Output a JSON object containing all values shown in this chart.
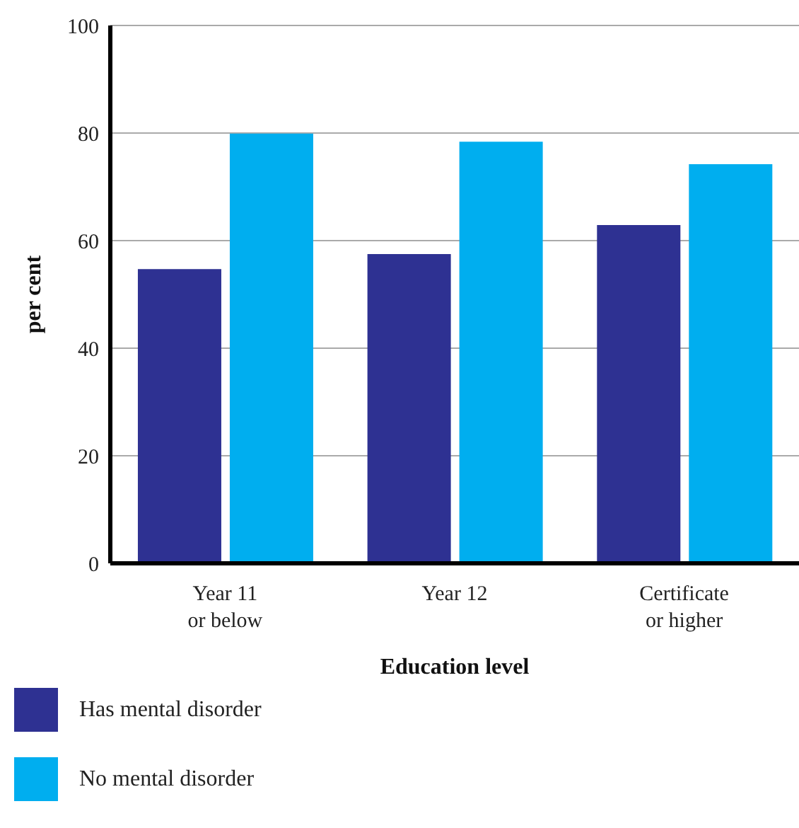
{
  "chart_data": {
    "type": "bar",
    "xlabel": "Education level",
    "ylabel": "per cent",
    "categories": [
      "Year 11\nor below",
      "Year 12",
      "Certificate\nor higher"
    ],
    "series": [
      {
        "name": "Has mental disorder",
        "color": "#2e3192",
        "values": [
          54.7,
          57.5,
          62.9
        ]
      },
      {
        "name": "No mental disorder",
        "color": "#00aeef",
        "values": [
          79.9,
          78.4,
          74.2
        ]
      }
    ],
    "ylim": [
      0,
      100
    ],
    "yticks": [
      0,
      20,
      40,
      60,
      80,
      100
    ],
    "grid": "y",
    "legend": "bottom"
  }
}
